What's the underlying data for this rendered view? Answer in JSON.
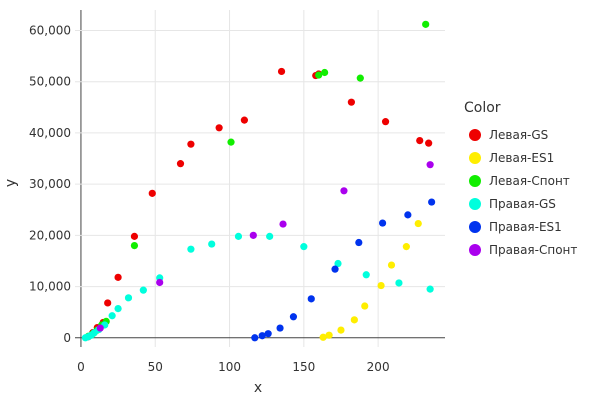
{
  "chart_data": {
    "type": "scatter",
    "title": "",
    "xlabel": "x",
    "ylabel": "y",
    "xlim": [
      -4,
      245
    ],
    "ylim": [
      -1800,
      64000
    ],
    "xticks": [
      0,
      50,
      100,
      150,
      200
    ],
    "xtick_labels": [
      "0",
      "50",
      "100",
      "150",
      "200"
    ],
    "yticks": [
      0,
      10000,
      20000,
      30000,
      40000,
      50000,
      60000
    ],
    "ytick_labels": [
      "0",
      "10,000",
      "20,000",
      "30,000",
      "40,000",
      "50,000",
      "60,000"
    ],
    "grid": true,
    "legend": {
      "title": "Color",
      "position": "right"
    },
    "series": [
      {
        "name": "Левая-GS",
        "color": "#ee0000",
        "x": [
          5,
          8,
          11,
          15,
          18,
          25,
          36,
          48,
          67,
          74,
          93,
          110,
          135,
          158,
          160,
          182,
          205,
          228,
          234
        ],
        "y": [
          200,
          1000,
          2000,
          3000,
          6800,
          11800,
          19800,
          28200,
          34000,
          37800,
          41000,
          42500,
          52000,
          51200,
          51500,
          46000,
          42200,
          38500,
          38000
        ]
      },
      {
        "name": "Левая-ES1",
        "color": "#ffee00",
        "x": [
          163,
          167,
          175,
          184,
          191,
          202,
          209,
          219,
          227
        ],
        "y": [
          100,
          500,
          1500,
          3500,
          6200,
          10200,
          14200,
          17800,
          22300
        ]
      },
      {
        "name": "Левая-Спонт",
        "color": "#11ee00",
        "x": [
          5,
          8,
          11,
          14,
          17,
          36,
          101,
          160,
          164,
          188,
          232
        ],
        "y": [
          300,
          800,
          1500,
          2500,
          3200,
          18000,
          38200,
          51300,
          51800,
          50700,
          61200
        ]
      },
      {
        "name": "Правая-GS",
        "color": "#00ffdd",
        "x": [
          3,
          5,
          7,
          9,
          12,
          16,
          21,
          25,
          32,
          42,
          53,
          74,
          88,
          106,
          127,
          150,
          173,
          192,
          214,
          235
        ],
        "y": [
          0,
          200,
          500,
          1000,
          1600,
          2500,
          4300,
          5700,
          7800,
          9300,
          11700,
          17300,
          18300,
          19800,
          19800,
          17800,
          14500,
          12300,
          10700,
          9500
        ]
      },
      {
        "name": "Правая-ES1",
        "color": "#0033ee",
        "x": [
          117,
          122,
          126,
          134,
          143,
          155,
          171,
          187,
          203,
          220,
          236
        ],
        "y": [
          0,
          400,
          800,
          1900,
          4100,
          7600,
          13400,
          18600,
          22400,
          24000,
          26500
        ]
      },
      {
        "name": "Правая-Спонт",
        "color": "#aa00ee",
        "x": [
          13,
          53,
          116,
          136,
          177,
          235
        ],
        "y": [
          1900,
          10800,
          20000,
          22200,
          28700,
          33800
        ]
      }
    ]
  }
}
